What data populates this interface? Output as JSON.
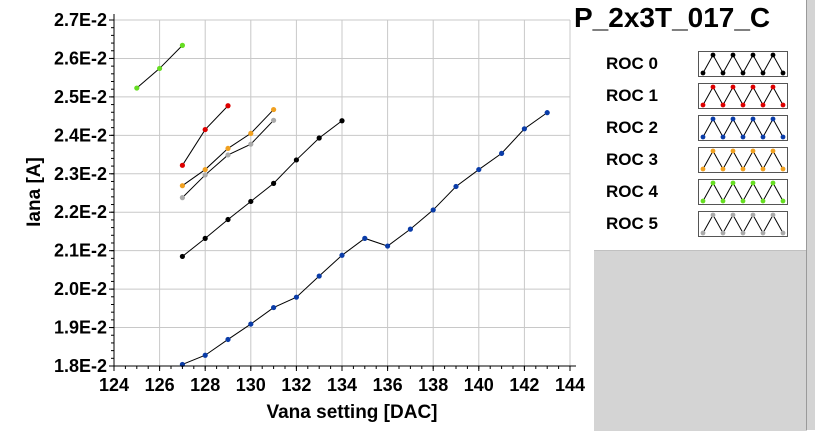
{
  "plot_title": "P_2x3T_017_C",
  "chart_data": {
    "type": "line",
    "title": "",
    "xlabel": "Vana setting [DAC]",
    "ylabel": "Iana [A]",
    "xlim": [
      124,
      144
    ],
    "ylim": [
      0.018,
      0.027
    ],
    "x_ticks": [
      124,
      126,
      128,
      130,
      132,
      134,
      136,
      138,
      140,
      142,
      144
    ],
    "x_tick_labels": [
      "124",
      "126",
      "128",
      "130",
      "132",
      "134",
      "136",
      "138",
      "140",
      "142",
      "144"
    ],
    "y_ticks": [
      0.018,
      0.019,
      0.02,
      0.021,
      0.022,
      0.023,
      0.024,
      0.025,
      0.026,
      0.027
    ],
    "y_tick_labels": [
      "1.8E-2",
      "1.9E-2",
      "2.0E-2",
      "2.1E-2",
      "2.2E-2",
      "2.3E-2",
      "2.4E-2",
      "2.5E-2",
      "2.6E-2",
      "2.7E-2"
    ],
    "grid": true,
    "legend_position": "right",
    "series": [
      {
        "name": "ROC 0",
        "color": "#000000",
        "x": [
          127,
          128,
          129,
          130,
          131,
          132,
          133,
          134
        ],
        "y": [
          0.02085,
          0.02132,
          0.02181,
          0.02228,
          0.02275,
          0.02336,
          0.02393,
          0.02438
        ]
      },
      {
        "name": "ROC 1",
        "color": "#dd0000",
        "x": [
          127,
          128,
          129
        ],
        "y": [
          0.02322,
          0.02415,
          0.02477
        ]
      },
      {
        "name": "ROC 2",
        "color": "#0a3ca8",
        "x": [
          127,
          128,
          129,
          130,
          131,
          132,
          133,
          134,
          135,
          136,
          137,
          138,
          139,
          140,
          141,
          142,
          143
        ],
        "y": [
          0.01804,
          0.01828,
          0.01869,
          0.01909,
          0.01952,
          0.01979,
          0.02034,
          0.02088,
          0.02132,
          0.02112,
          0.02156,
          0.02206,
          0.02267,
          0.02311,
          0.02353,
          0.02417,
          0.02459
        ]
      },
      {
        "name": "ROC 3",
        "color": "#f0a020",
        "x": [
          127,
          128,
          129,
          130,
          131
        ],
        "y": [
          0.02269,
          0.02311,
          0.02366,
          0.02405,
          0.02467
        ]
      },
      {
        "name": "ROC 4",
        "color": "#66dd22",
        "x": [
          125,
          126,
          127
        ],
        "y": [
          0.02523,
          0.02574,
          0.02634
        ]
      },
      {
        "name": "ROC 5",
        "color": "#aaaaaa",
        "x": [
          127,
          128,
          129,
          130,
          131
        ],
        "y": [
          0.02238,
          0.02297,
          0.02349,
          0.02377,
          0.02439
        ]
      }
    ]
  }
}
